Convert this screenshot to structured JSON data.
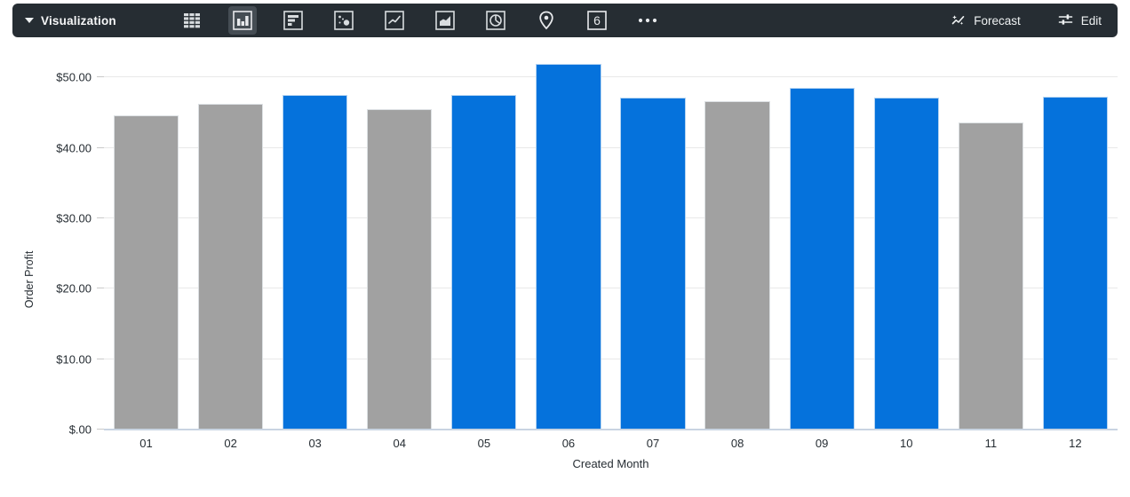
{
  "toolbar": {
    "title": "Visualization",
    "background": "#262d33",
    "selected_icon": "column-chart",
    "icon_names": [
      "table",
      "column-chart",
      "bar-chart",
      "scatter",
      "line-chart",
      "area-chart",
      "pie-chart",
      "map",
      "single-value",
      "more"
    ],
    "single_value_glyph": "6",
    "forecast_label": "Forecast",
    "edit_label": "Edit"
  },
  "chart_data": {
    "type": "bar",
    "title": "",
    "xlabel": "Created Month",
    "ylabel": "Order Profit",
    "categories": [
      "01",
      "02",
      "03",
      "04",
      "05",
      "06",
      "07",
      "08",
      "09",
      "10",
      "11",
      "12"
    ],
    "values": [
      44.6,
      46.3,
      47.5,
      45.5,
      47.5,
      51.9,
      47.2,
      46.6,
      48.5,
      47.2,
      43.6,
      47.3
    ],
    "bar_colors": [
      "gray",
      "gray",
      "blue",
      "gray",
      "blue",
      "blue",
      "blue",
      "gray",
      "blue",
      "blue",
      "gray",
      "blue"
    ],
    "palette": {
      "blue": "#0572dc",
      "gray": "#a1a1a1"
    },
    "y_ticks": [
      {
        "label": "$50.00",
        "value": 50
      },
      {
        "label": "$40.00",
        "value": 40
      },
      {
        "label": "$30.00",
        "value": 30
      },
      {
        "label": "$20.00",
        "value": 20
      },
      {
        "label": "$10.00",
        "value": 10
      },
      {
        "label": "$.00",
        "value": 0
      }
    ],
    "ylim": [
      0,
      53.2
    ],
    "grid": true,
    "legend": "none"
  }
}
